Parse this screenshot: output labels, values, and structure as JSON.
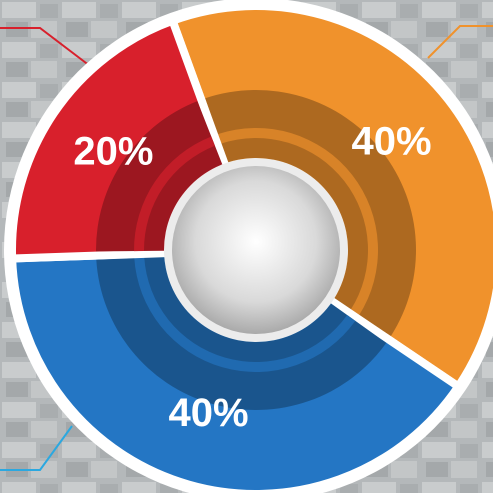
{
  "chart_data": {
    "type": "pie",
    "values": [
      40,
      40,
      20
    ],
    "value_labels": [
      "40%",
      "40%",
      "20%"
    ],
    "colors": [
      "#f0922c",
      "#2476c4",
      "#d8202c"
    ]
  }
}
